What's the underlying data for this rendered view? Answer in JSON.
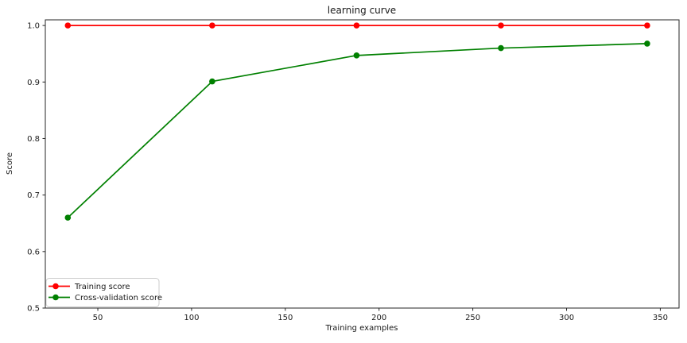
{
  "figure": {
    "background": "#ffffff",
    "spine_color": "#262626",
    "text_color": "#1a1a1a"
  },
  "chart_data": {
    "type": "line",
    "title": "learning curve",
    "xlabel": "Training examples",
    "ylabel": "Score",
    "x": [
      34,
      111,
      188,
      265,
      343
    ],
    "series": [
      {
        "name": "Training score",
        "color": "#ff0000",
        "marker": "circle",
        "values": [
          1.0,
          1.0,
          1.0,
          1.0,
          1.0
        ]
      },
      {
        "name": "Cross-validation score",
        "color": "#008000",
        "marker": "circle",
        "values": [
          0.66,
          0.901,
          0.947,
          0.96,
          0.968
        ]
      }
    ],
    "xticks": [
      50,
      100,
      150,
      200,
      250,
      300,
      350
    ],
    "yticks": [
      0.5,
      0.6,
      0.7,
      0.8,
      0.9,
      1.0
    ],
    "xlim": [
      22,
      360
    ],
    "ylim": [
      0.5,
      1.01
    ],
    "grid": false,
    "legend": {
      "position": "lower left",
      "border_color": "#cccccc",
      "background": "#ffffff"
    }
  }
}
